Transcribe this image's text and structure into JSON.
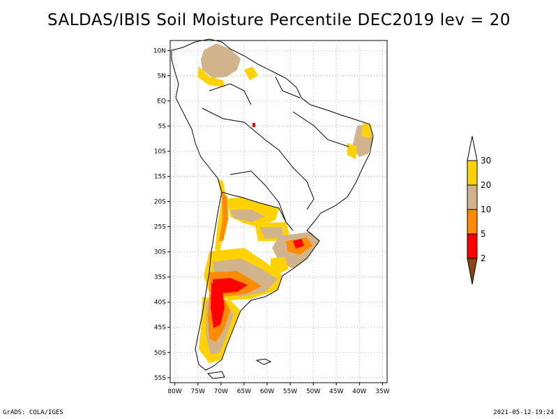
{
  "title": "SALDAS/IBIS Soil Moisture Percentile DEC2019 lev = 20",
  "footer": {
    "left": "GrADS: COLA/IGES",
    "right": "2021-05-12-19:24"
  },
  "map": {
    "lon_range": [
      -81,
      -34
    ],
    "lat_range": [
      -56,
      12
    ],
    "x_ticks": [
      {
        "lon": -80,
        "label": "80W"
      },
      {
        "lon": -75,
        "label": "75W"
      },
      {
        "lon": -70,
        "label": "70W"
      },
      {
        "lon": -65,
        "label": "65W"
      },
      {
        "lon": -60,
        "label": "60W"
      },
      {
        "lon": -55,
        "label": "55W"
      },
      {
        "lon": -50,
        "label": "50W"
      },
      {
        "lon": -45,
        "label": "45W"
      },
      {
        "lon": -40,
        "label": "40W"
      },
      {
        "lon": -35,
        "label": "35W"
      }
    ],
    "y_ticks": [
      {
        "lat": 10,
        "label": "10N"
      },
      {
        "lat": 5,
        "label": "5N"
      },
      {
        "lat": 0,
        "label": "EQ"
      },
      {
        "lat": -5,
        "label": "5S"
      },
      {
        "lat": -10,
        "label": "10S"
      },
      {
        "lat": -15,
        "label": "15S"
      },
      {
        "lat": -20,
        "label": "20S"
      },
      {
        "lat": -25,
        "label": "25S"
      },
      {
        "lat": -30,
        "label": "30S"
      },
      {
        "lat": -35,
        "label": "35S"
      },
      {
        "lat": -40,
        "label": "40S"
      },
      {
        "lat": -45,
        "label": "45S"
      },
      {
        "lat": -50,
        "label": "50S"
      },
      {
        "lat": -55,
        "label": "55S"
      }
    ]
  },
  "legend": {
    "levels": [
      {
        "label": "30"
      },
      {
        "label": "20"
      },
      {
        "label": "10"
      },
      {
        "label": "5"
      },
      {
        "label": "2"
      }
    ],
    "colors": {
      "gt30": "#ffffff",
      "20_30": "#ffd200",
      "10_20": "#d2b48c",
      "5_10": "#ff8c00",
      "2_5": "#ff0000",
      "lt2": "#8b4513"
    }
  },
  "colors": {
    "yellow": "#ffd200",
    "tan": "#d2b48c",
    "orange": "#ff8c00",
    "red": "#ff0000",
    "grid": "#a0a0a0"
  }
}
